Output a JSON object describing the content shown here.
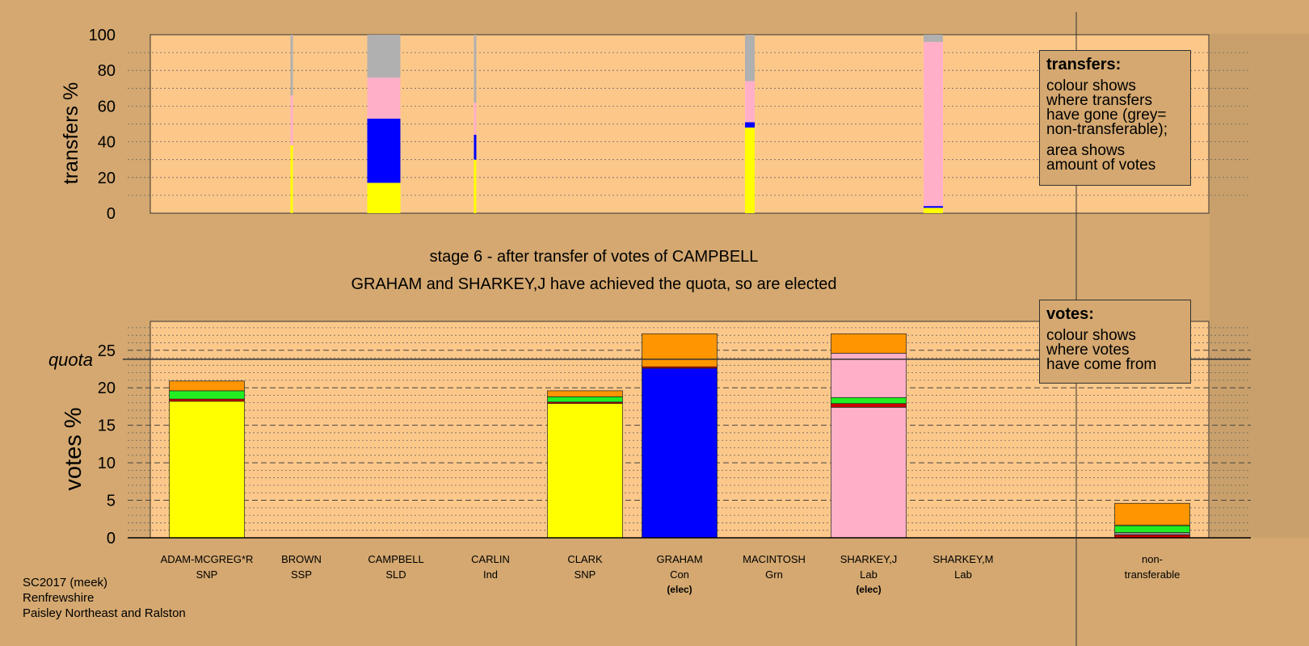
{
  "title": {
    "line1": "stage 6 - after transfer of votes of CAMPBELL",
    "line2": "GRAHAM and SHARKEY,J have achieved the quota, so are elected"
  },
  "legends": {
    "transfers": {
      "title": "transfers:",
      "lines": [
        "colour shows",
        "where transfers",
        "have gone (grey=",
        "non-transferable);",
        "area shows",
        "amount of votes"
      ]
    },
    "votes": {
      "title": "votes:",
      "lines": [
        "colour shows",
        "where votes",
        "have come from"
      ]
    }
  },
  "footer": [
    "SC2017 (meek)",
    "Renfrewshire",
    "Paisley Northeast and Ralston"
  ],
  "colors": {
    "background": "#d4a870",
    "plot": "#fcc88a",
    "SNP": "#ffff00",
    "Con": "#0000ff",
    "Lab": "#ffb0c8",
    "Grn": "#22ee22",
    "SSP": "#cc0000",
    "Ind": "#909090",
    "SLD": "#ff9500",
    "nontransferable": "#b0b0b0"
  },
  "chart_data": [
    {
      "type": "bar",
      "subtype": "stacked",
      "ylabel": "transfers %",
      "ylim": [
        0,
        100
      ],
      "yticks": [
        0,
        20,
        40,
        60,
        80,
        100
      ],
      "grid": true,
      "bars": [
        {
          "x": 361,
          "w": 3,
          "segments": [
            {
              "party": "SNP",
              "value": 38
            },
            {
              "party": "Lab",
              "value": 28
            },
            {
              "party": "nontransferable",
              "value": 34
            }
          ]
        },
        {
          "x": 475,
          "w": 41,
          "segments": [
            {
              "party": "SNP",
              "value": 17
            },
            {
              "party": "Con",
              "value": 36
            },
            {
              "party": "Lab",
              "value": 23
            },
            {
              "party": "nontransferable",
              "value": 24
            }
          ]
        },
        {
          "x": 588,
          "w": 3,
          "segments": [
            {
              "party": "SNP",
              "value": 30
            },
            {
              "party": "Con",
              "value": 14
            },
            {
              "party": "Lab",
              "value": 18
            },
            {
              "party": "nontransferable",
              "value": 38
            }
          ]
        },
        {
          "x": 928,
          "w": 12,
          "segments": [
            {
              "party": "SNP",
              "value": 48
            },
            {
              "party": "Con",
              "value": 3
            },
            {
              "party": "Lab",
              "value": 23
            },
            {
              "party": "nontransferable",
              "value": 26
            }
          ]
        },
        {
          "x": 1155,
          "w": 24,
          "segments": [
            {
              "party": "SNP",
              "value": 3
            },
            {
              "party": "Con",
              "value": 1
            },
            {
              "party": "Lab",
              "value": 92
            },
            {
              "party": "nontransferable",
              "value": 4
            }
          ]
        }
      ]
    },
    {
      "type": "bar",
      "subtype": "stacked",
      "ylabel": "votes %",
      "ylim": [
        0,
        29
      ],
      "yticks": [
        0,
        5,
        10,
        15,
        20,
        25
      ],
      "quota": 23.8,
      "quota_label": "quota",
      "grid": true,
      "categories": [
        {
          "name": "ADAM-MCGREG*R",
          "party": "SNP",
          "elected": ""
        },
        {
          "name": "BROWN",
          "party": "SSP",
          "elected": ""
        },
        {
          "name": "CAMPBELL",
          "party": "SLD",
          "elected": ""
        },
        {
          "name": "CARLIN",
          "party": "Ind",
          "elected": ""
        },
        {
          "name": "CLARK",
          "party": "SNP",
          "elected": ""
        },
        {
          "name": "GRAHAM",
          "party": "Con",
          "elected": "(elec)"
        },
        {
          "name": "MACINTOSH",
          "party": "Grn",
          "elected": ""
        },
        {
          "name": "SHARKEY,J",
          "party": "Lab",
          "elected": "(elec)"
        },
        {
          "name": "SHARKEY,M",
          "party": "Lab",
          "elected": ""
        }
      ],
      "nontransferable_label": [
        "non-",
        "transferable"
      ],
      "bars": [
        {
          "cat": 0,
          "segments": [
            {
              "party": "SNP",
              "value": 18.2
            },
            {
              "party": "SSP",
              "value": 0.3
            },
            {
              "party": "Grn",
              "value": 1.1
            },
            {
              "party": "SLD",
              "value": 1.3
            }
          ]
        },
        {
          "cat": 4,
          "segments": [
            {
              "party": "SNP",
              "value": 17.9
            },
            {
              "party": "SSP",
              "value": 0.2
            },
            {
              "party": "Grn",
              "value": 0.7
            },
            {
              "party": "SLD",
              "value": 0.8
            }
          ]
        },
        {
          "cat": 5,
          "segments": [
            {
              "party": "Con",
              "value": 22.6
            },
            {
              "party": "SSP",
              "value": 0.2
            },
            {
              "party": "SLD",
              "value": 4.4
            }
          ]
        },
        {
          "cat": 7,
          "segments": [
            {
              "party": "Lab",
              "value": 17.4
            },
            {
              "party": "SSP",
              "value": 0.5
            },
            {
              "party": "Grn",
              "value": 0.8
            },
            {
              "party": "Lab",
              "value": 5.9
            },
            {
              "party": "SLD",
              "value": 2.6
            }
          ]
        },
        {
          "cat": 9,
          "segments": [
            {
              "party": "SSP",
              "value": 0.4
            },
            {
              "party": "Ind",
              "value": 0.3
            },
            {
              "party": "Grn",
              "value": 0.9
            },
            {
              "party": "SNP",
              "value": 0.1
            },
            {
              "party": "SLD",
              "value": 2.9
            }
          ]
        }
      ]
    }
  ]
}
